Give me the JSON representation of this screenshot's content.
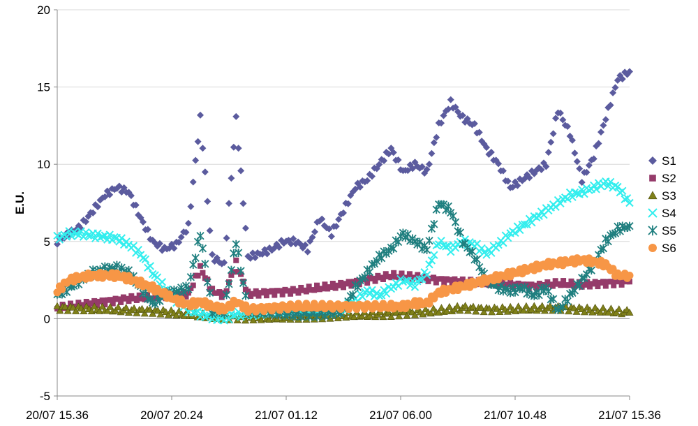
{
  "chart_data": {
    "type": "scatter",
    "title": "",
    "xlabel": "",
    "ylabel": "E.U.",
    "ylim": [
      -5,
      20
    ],
    "yticks": [
      -5,
      0,
      5,
      10,
      15,
      20
    ],
    "ytick_labels": [
      "-5",
      "0",
      "5",
      "10",
      "15",
      "20"
    ],
    "xlim": [
      0,
      24
    ],
    "xticks": [
      0,
      4.8,
      9.6,
      14.4,
      19.2,
      24
    ],
    "xtick_labels": [
      "20/07 15.36",
      "20/07 20.24",
      "21/07 01.12",
      "21/07 06.00",
      "21/07 10.48",
      "21/07 15.36"
    ],
    "grid": "horizontal",
    "legend_position": "right",
    "series": [
      {
        "name": "S1",
        "marker": "diamond",
        "color": "#5B5B9E",
        "x": [
          0,
          0.5,
          1,
          1.5,
          2,
          2.5,
          3,
          3.5,
          4,
          4.5,
          5,
          5.5,
          6,
          6.5,
          7,
          7.5,
          8,
          8.5,
          9,
          9.5,
          10,
          10.5,
          11,
          11.5,
          12,
          12.5,
          13,
          13.5,
          14,
          14.5,
          15,
          15.5,
          16,
          16.5,
          17,
          17.5,
          18,
          18.5,
          19,
          19.5,
          20,
          20.5,
          21,
          21.5,
          22,
          22.5,
          23,
          23.5,
          24
        ],
        "y": [
          5.0,
          5.5,
          6.0,
          7.0,
          8.0,
          8.5,
          8.2,
          6.5,
          5.0,
          4.5,
          4.8,
          6.0,
          13.0,
          4.0,
          3.5,
          13.0,
          4.0,
          4.2,
          4.5,
          5.0,
          5.0,
          4.5,
          6.5,
          5.5,
          7.0,
          8.5,
          9.0,
          10.0,
          11.0,
          9.5,
          10.0,
          9.5,
          12.5,
          14.0,
          13.0,
          12.5,
          11.0,
          10.0,
          8.5,
          9.0,
          9.5,
          10.0,
          13.5,
          12.0,
          9.0,
          10.5,
          13.0,
          15.5,
          16.0
        ]
      },
      {
        "name": "S2",
        "marker": "square",
        "color": "#953B6A",
        "x": [
          0,
          1,
          2,
          3,
          4,
          5,
          5.5,
          6,
          6.5,
          7,
          7.5,
          8,
          9,
          10,
          11,
          12,
          13,
          14,
          15,
          16,
          17,
          18,
          19,
          20,
          21,
          22,
          23,
          24
        ],
        "y": [
          0.7,
          0.9,
          1.1,
          1.3,
          1.4,
          1.5,
          1.6,
          3.3,
          1.8,
          1.5,
          3.6,
          1.6,
          1.7,
          1.8,
          2.0,
          2.2,
          2.5,
          2.8,
          2.7,
          2.5,
          2.4,
          2.3,
          2.2,
          2.1,
          2.3,
          2.2,
          2.3,
          2.4
        ]
      },
      {
        "name": "S3",
        "marker": "triangle",
        "color": "#7F8019",
        "x": [
          0,
          1,
          2,
          3,
          4,
          5,
          6,
          7,
          8,
          9,
          10,
          11,
          12,
          13,
          14,
          15,
          16,
          17,
          18,
          19,
          20,
          21,
          22,
          23,
          24
        ],
        "y": [
          0.7,
          0.65,
          0.6,
          0.55,
          0.5,
          0.35,
          0.2,
          0.1,
          0.05,
          0.05,
          0.1,
          0.15,
          0.2,
          0.25,
          0.3,
          0.4,
          0.5,
          0.7,
          0.6,
          0.6,
          0.65,
          0.7,
          0.6,
          0.5,
          0.4
        ]
      },
      {
        "name": "S4",
        "marker": "x",
        "color": "#33EEEE",
        "x": [
          0,
          0.5,
          1,
          1.5,
          2,
          2.5,
          3,
          3.5,
          4,
          4.5,
          5,
          5.5,
          6,
          6.5,
          7,
          7.5,
          8,
          9,
          10,
          11,
          12,
          12.5,
          13,
          13.5,
          14,
          14.5,
          15,
          15.5,
          16,
          16.5,
          17,
          17.5,
          18,
          18.5,
          19,
          19.5,
          20,
          20.5,
          21,
          21.5,
          22,
          22.5,
          23,
          23.5,
          24
        ],
        "y": [
          5.2,
          5.5,
          5.5,
          5.4,
          5.3,
          5.2,
          4.8,
          4.2,
          3.0,
          2.0,
          1.2,
          0.6,
          0.3,
          0.1,
          0.0,
          0.3,
          0.3,
          0.5,
          0.6,
          0.5,
          0.6,
          1.2,
          1.8,
          1.5,
          2.0,
          2.5,
          2.2,
          3.0,
          5.0,
          4.5,
          5.0,
          4.8,
          4.2,
          4.8,
          5.5,
          6.0,
          6.5,
          7.0,
          7.5,
          8.0,
          8.2,
          8.5,
          8.8,
          8.5,
          7.5
        ]
      },
      {
        "name": "S5",
        "marker": "asterisk",
        "color": "#1F7F7F",
        "x": [
          0,
          0.5,
          1,
          1.5,
          2,
          2.5,
          3,
          3.5,
          4,
          4.5,
          5,
          5.5,
          6,
          6.5,
          7,
          7.5,
          8,
          9,
          10,
          11,
          12,
          12.5,
          13,
          13.5,
          14,
          14.5,
          15,
          15.5,
          16,
          16.5,
          17,
          17.5,
          18,
          18.5,
          19,
          19.5,
          20,
          20.5,
          21,
          21.5,
          22,
          22.5,
          23,
          23.5,
          24
        ],
        "y": [
          1.5,
          2.0,
          2.5,
          3.0,
          3.2,
          3.3,
          3.0,
          2.0,
          1.0,
          1.5,
          1.8,
          2.0,
          5.5,
          0.5,
          0.5,
          5.0,
          0.5,
          0.4,
          0.3,
          0.3,
          0.5,
          2.0,
          3.0,
          4.0,
          4.5,
          5.5,
          5.0,
          4.5,
          7.5,
          7.0,
          5.0,
          4.0,
          2.5,
          2.0,
          1.8,
          2.0,
          1.5,
          2.0,
          0.5,
          1.5,
          2.5,
          3.5,
          5.0,
          5.8,
          6.0
        ]
      },
      {
        "name": "S6",
        "marker": "circle",
        "color": "#F79646",
        "x": [
          0,
          0.5,
          1,
          1.5,
          2,
          2.5,
          3,
          3.5,
          4,
          4.5,
          5,
          5.5,
          6,
          6.5,
          7,
          7.5,
          8,
          9,
          10,
          11,
          12,
          13,
          14,
          14.5,
          15,
          15.5,
          16,
          16.5,
          17,
          17.5,
          18,
          18.5,
          19,
          19.5,
          20,
          20.5,
          21,
          21.5,
          22,
          22.5,
          23,
          23.5,
          24
        ],
        "y": [
          1.8,
          2.5,
          2.7,
          2.8,
          2.8,
          2.8,
          2.6,
          2.3,
          2.0,
          1.6,
          1.2,
          0.9,
          1.1,
          0.8,
          0.6,
          1.1,
          0.6,
          0.7,
          0.8,
          0.8,
          0.8,
          0.8,
          0.8,
          0.8,
          1.0,
          1.0,
          1.7,
          1.9,
          2.1,
          2.3,
          2.5,
          2.7,
          2.9,
          3.1,
          3.3,
          3.5,
          3.6,
          3.7,
          3.8,
          3.7,
          3.5,
          2.8,
          2.8
        ]
      }
    ]
  }
}
